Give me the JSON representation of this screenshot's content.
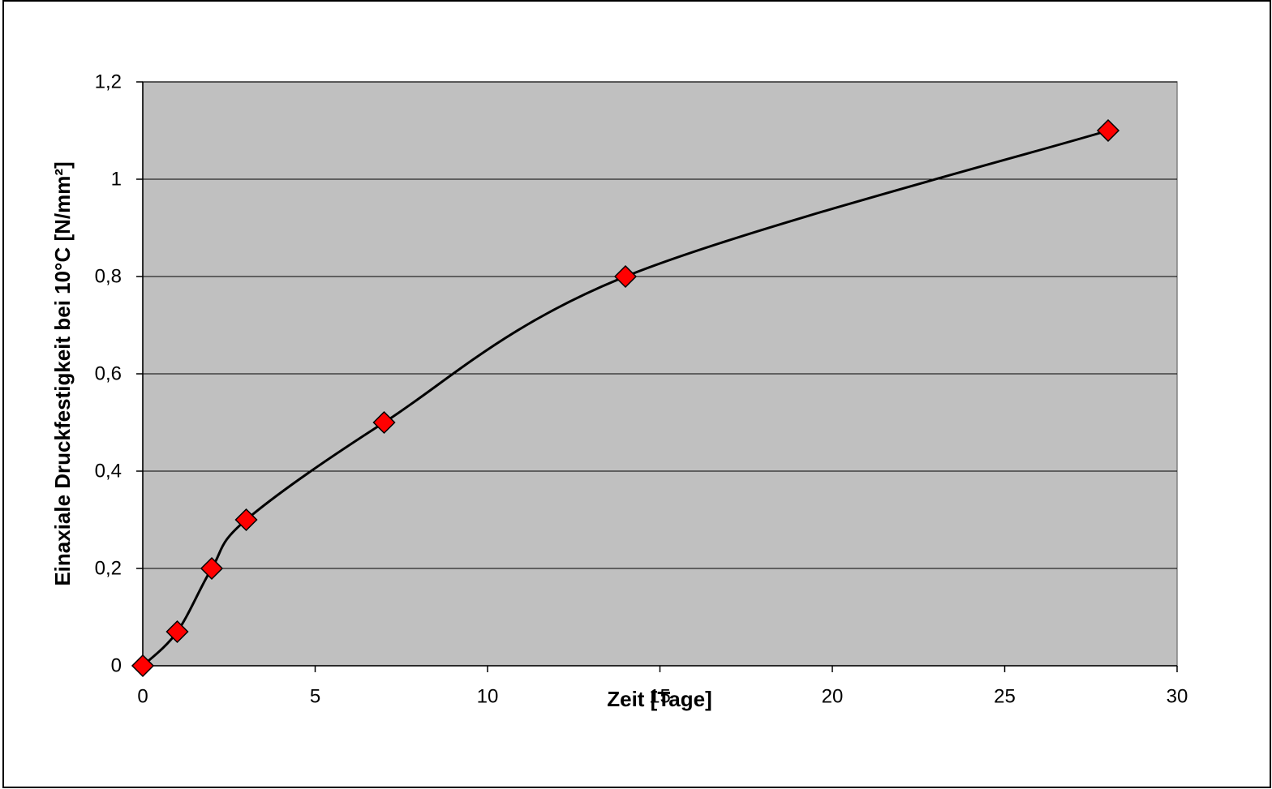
{
  "chart_data": {
    "type": "line",
    "title": "",
    "xlabel": "Zeit [Tage]",
    "ylabel": "Einaxiale Druckfestigkeit bei 10°C [N/mm²]",
    "xlim": [
      0,
      30
    ],
    "ylim": [
      0,
      1.2
    ],
    "x_ticks": [
      0,
      5,
      10,
      15,
      20,
      25,
      30
    ],
    "y_ticks": [
      0,
      0.2,
      0.4,
      0.6,
      0.8,
      1.0,
      1.2
    ],
    "x_tick_labels": [
      "0",
      "5",
      "10",
      "15",
      "20",
      "25",
      "30"
    ],
    "y_tick_labels": [
      "0",
      "0,2",
      "0,4",
      "0,6",
      "0,8",
      "1",
      "1,2"
    ],
    "grid": "horizontal",
    "legend": "none",
    "series": [
      {
        "x": [
          0,
          1,
          2,
          3,
          7,
          14,
          28
        ],
        "y": [
          0,
          0.07,
          0.2,
          0.3,
          0.5,
          0.8,
          1.1
        ],
        "smooth": true,
        "line_color": "#000000",
        "marker": "diamond",
        "marker_color": "#ff0000"
      }
    ],
    "colors": {
      "plot_background": "#c0c0c0",
      "gridline": "#000000",
      "marker_fill": "#ff0000",
      "marker_edge": "#000000"
    }
  }
}
